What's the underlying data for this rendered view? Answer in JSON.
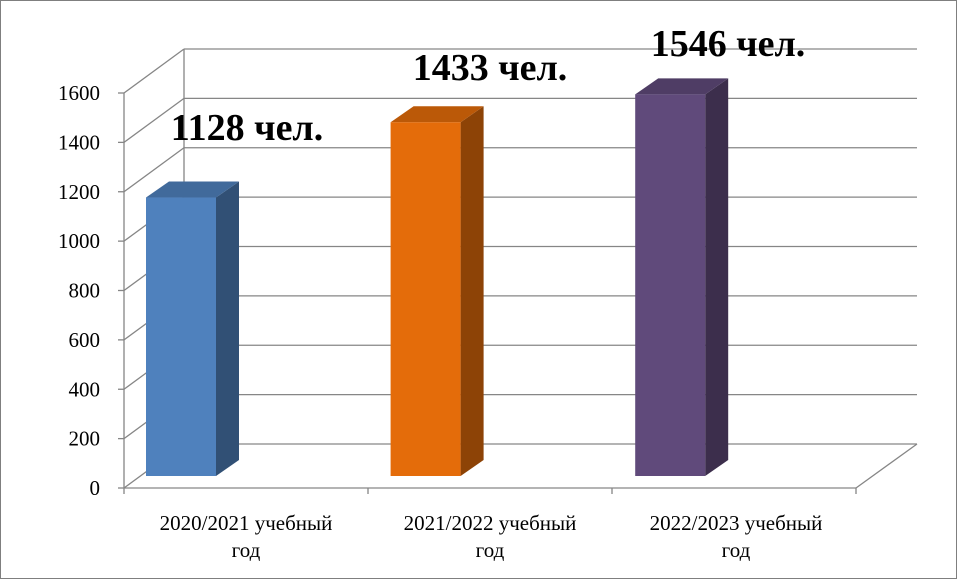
{
  "chart_data": {
    "type": "bar",
    "categories": [
      [
        "2020/2021 учебный",
        "год"
      ],
      [
        "2021/2022 учебный",
        "год"
      ],
      [
        "2022/2023 учебный",
        "год"
      ]
    ],
    "values": [
      1128,
      1433,
      1546
    ],
    "data_labels": [
      "1128 чел.",
      "1433 чел.",
      "1546 чел."
    ],
    "colors": [
      "#4f81bd",
      "#e46c0a",
      "#604a7b"
    ],
    "ylim": [
      0,
      1600
    ],
    "yticks": [
      0,
      200,
      400,
      600,
      800,
      1000,
      1200,
      1400,
      1600
    ],
    "grid": true,
    "style": "3d-column",
    "title": "",
    "xlabel": "",
    "ylabel": ""
  }
}
